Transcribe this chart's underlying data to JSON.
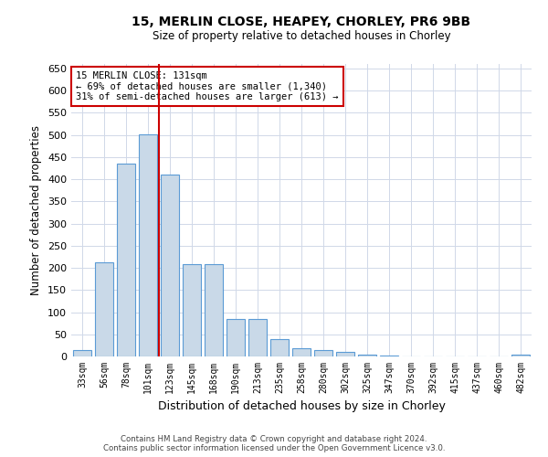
{
  "title1": "15, MERLIN CLOSE, HEAPEY, CHORLEY, PR6 9BB",
  "title2": "Size of property relative to detached houses in Chorley",
  "xlabel": "Distribution of detached houses by size in Chorley",
  "ylabel": "Number of detached properties",
  "categories": [
    "33sqm",
    "56sqm",
    "78sqm",
    "101sqm",
    "123sqm",
    "145sqm",
    "168sqm",
    "190sqm",
    "213sqm",
    "235sqm",
    "258sqm",
    "280sqm",
    "302sqm",
    "325sqm",
    "347sqm",
    "370sqm",
    "392sqm",
    "415sqm",
    "437sqm",
    "460sqm",
    "482sqm"
  ],
  "values": [
    15,
    213,
    435,
    502,
    410,
    208,
    208,
    85,
    85,
    40,
    18,
    15,
    10,
    5,
    3,
    1,
    1,
    0,
    0,
    0,
    5
  ],
  "bar_color": "#c9d9e8",
  "bar_edge_color": "#5b9bd5",
  "vline_x": 3.5,
  "vline_color": "#cc0000",
  "annotation_title": "15 MERLIN CLOSE: 131sqm",
  "annotation_line1": "← 69% of detached houses are smaller (1,340)",
  "annotation_line2": "31% of semi-detached houses are larger (613) →",
  "annotation_box_color": "#ffffff",
  "annotation_box_edge": "#cc0000",
  "ylim": [
    0,
    660
  ],
  "yticks": [
    0,
    50,
    100,
    150,
    200,
    250,
    300,
    350,
    400,
    450,
    500,
    550,
    600,
    650
  ],
  "footer1": "Contains HM Land Registry data © Crown copyright and database right 2024.",
  "footer2": "Contains public sector information licensed under the Open Government Licence v3.0.",
  "bg_color": "#ffffff",
  "grid_color": "#d0d8e8"
}
